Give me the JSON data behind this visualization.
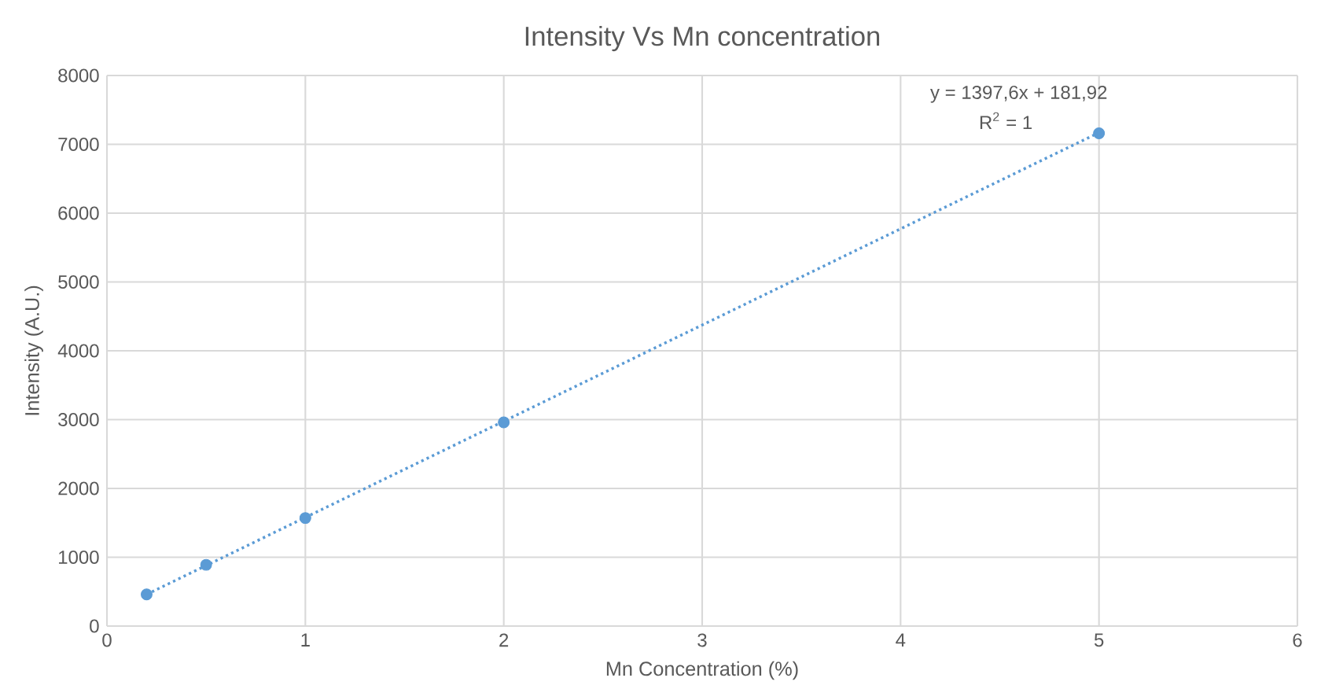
{
  "chart_data": {
    "type": "scatter",
    "title": "Intensity Vs Mn concentration",
    "xlabel": "Mn Concentration (%)",
    "ylabel": "Intensity (A.U.)",
    "xlim": [
      0,
      6
    ],
    "xticks": [
      0,
      1,
      2,
      3,
      4,
      5,
      6
    ],
    "ylim": [
      0,
      8000
    ],
    "yticks": [
      0,
      1000,
      2000,
      3000,
      4000,
      5000,
      6000,
      7000,
      8000
    ],
    "grid": true,
    "marker": "circle",
    "series": [
      {
        "color": "#5b9bd5",
        "x": [
          0.2,
          0.5,
          1,
          2,
          5
        ],
        "values": [
          460,
          890,
          1570,
          2960,
          7160
        ]
      },
      {
        "type": "line",
        "color": "#5b9bd5",
        "line_style": "dotted",
        "marker": "none",
        "x": [
          0.2,
          5
        ],
        "values": [
          460,
          7170
        ]
      }
    ],
    "annotations": [
      "y = 1397,6x + 181,92",
      "R$^{2}$ = 1"
    ]
  }
}
